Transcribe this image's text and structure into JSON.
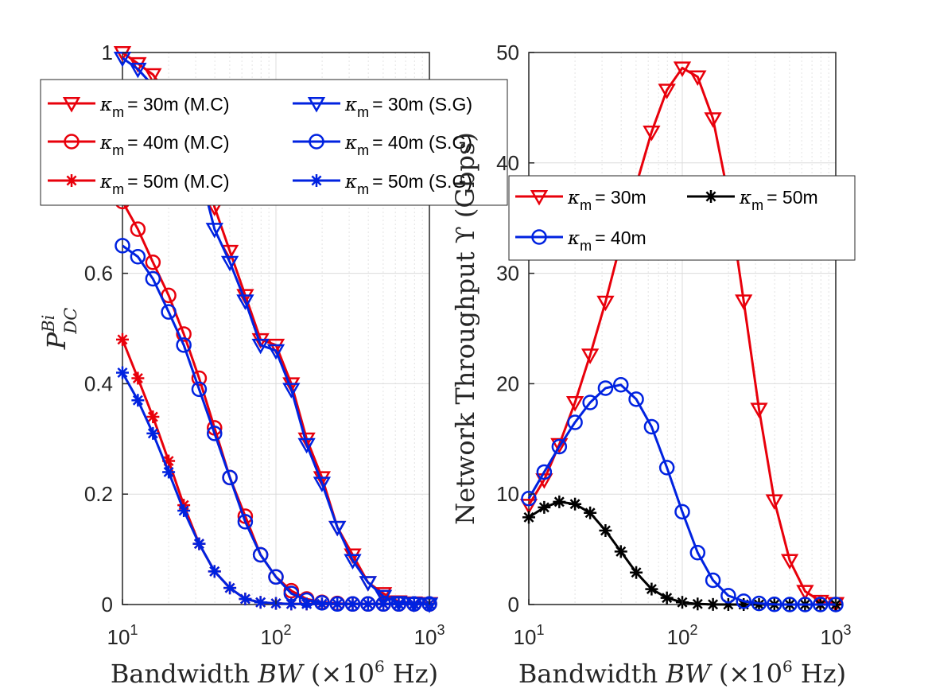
{
  "chart_data": [
    {
      "type": "line",
      "x_scale": "log",
      "xlim": [
        10,
        1000
      ],
      "ylim": [
        0,
        1
      ],
      "xticks": [
        {
          "value": 10,
          "base": "10",
          "exp": "1"
        },
        {
          "value": 100,
          "base": "10",
          "exp": "2"
        },
        {
          "value": 1000,
          "base": "10",
          "exp": "3"
        }
      ],
      "yticks": [
        {
          "value": 0,
          "label": "0"
        },
        {
          "value": 0.2,
          "label": "0.2"
        },
        {
          "value": 0.4,
          "label": "0.4"
        },
        {
          "value": 0.6,
          "label": "0.6"
        },
        {
          "value": 1,
          "label": "1"
        }
      ],
      "xlabel_parts": {
        "text": "Bandwidth ",
        "var": "BW",
        "paren_open": " (×10",
        "exp": "6",
        "paren_close": " Hz)"
      },
      "ylabel_parts": {
        "main": "P",
        "sup": "Bi",
        "sub": "DC"
      },
      "grid": true,
      "legend_placement": "top (overlapping plot, two columns)",
      "legend_prefix": "κ",
      "legend_sub": "m",
      "series": [
        {
          "name": "= 30m (M.C)",
          "color": "#e8000b",
          "marker": "triangle-down",
          "x": [
            10,
            12.6,
            15.8,
            20,
            25.1,
            31.6,
            39.8,
            50.1,
            63.1,
            79.4,
            100,
            125.9,
            158.5,
            199.5,
            251.2,
            316.2,
            398.1,
            501.2,
            631,
            794.3,
            1000
          ],
          "y": [
            1.0,
            0.98,
            0.96,
            0.92,
            0.88,
            0.83,
            0.72,
            0.64,
            0.56,
            0.48,
            0.47,
            0.4,
            0.3,
            0.23,
            0.14,
            0.09,
            0.04,
            0.02,
            0.005,
            0.003,
            0.002
          ]
        },
        {
          "name": "= 40m (M.C)",
          "color": "#e8000b",
          "marker": "circle",
          "x": [
            10,
            12.6,
            15.8,
            20,
            25.1,
            31.6,
            39.8,
            50.1,
            63.1,
            79.4,
            100,
            125.9,
            158.5,
            199.5,
            251.2,
            316.2,
            398.1,
            501.2,
            631,
            794.3,
            1000
          ],
          "y": [
            0.73,
            0.68,
            0.62,
            0.56,
            0.49,
            0.41,
            0.32,
            0.23,
            0.16,
            0.09,
            0.05,
            0.025,
            0.01,
            0.004,
            0.002,
            0.001,
            0.001,
            0.001,
            0.001,
            0.001,
            0.001
          ]
        },
        {
          "name": "= 50m (M.C)",
          "color": "#e8000b",
          "marker": "asterisk",
          "x": [
            10,
            12.6,
            15.8,
            20,
            25.1,
            31.6,
            39.8,
            50.1,
            63.1,
            79.4,
            100,
            125.9,
            158.5,
            199.5,
            251.2,
            316.2,
            398.1,
            501.2,
            631,
            794.3,
            1000
          ],
          "y": [
            0.48,
            0.41,
            0.34,
            0.26,
            0.18,
            0.11,
            0.06,
            0.03,
            0.01,
            0.004,
            0.002,
            0.001,
            0.001,
            0.001,
            0.001,
            0.001,
            0.001,
            0.001,
            0.001,
            0.001,
            0.001
          ]
        },
        {
          "name": "= 30m (S.G)",
          "color": "#0022e0",
          "marker": "triangle-down",
          "x": [
            10,
            12.6,
            15.8,
            20,
            25.1,
            31.6,
            39.8,
            50.1,
            63.1,
            79.4,
            100,
            125.9,
            158.5,
            199.5,
            251.2,
            316.2,
            398.1,
            501.2,
            631,
            794.3,
            1000
          ],
          "y": [
            0.99,
            0.97,
            0.94,
            0.9,
            0.85,
            0.79,
            0.68,
            0.62,
            0.55,
            0.47,
            0.46,
            0.39,
            0.29,
            0.22,
            0.14,
            0.08,
            0.04,
            0.015,
            0.004,
            0.002,
            0.001
          ]
        },
        {
          "name": "= 40m (S.G)",
          "color": "#0022e0",
          "marker": "circle",
          "x": [
            10,
            12.6,
            15.8,
            20,
            25.1,
            31.6,
            39.8,
            50.1,
            63.1,
            79.4,
            100,
            125.9,
            158.5,
            199.5,
            251.2,
            316.2,
            398.1,
            501.2,
            631,
            794.3,
            1000
          ],
          "y": [
            0.65,
            0.63,
            0.59,
            0.53,
            0.47,
            0.39,
            0.31,
            0.23,
            0.15,
            0.09,
            0.05,
            0.02,
            0.008,
            0.003,
            0.001,
            0.001,
            0.001,
            0.001,
            0.001,
            0.001,
            0.001
          ]
        },
        {
          "name": "= 50m (S.G)",
          "color": "#0022e0",
          "marker": "asterisk",
          "x": [
            10,
            12.6,
            15.8,
            20,
            25.1,
            31.6,
            39.8,
            50.1,
            63.1,
            79.4,
            100,
            125.9,
            158.5,
            199.5,
            251.2,
            316.2,
            398.1,
            501.2,
            631,
            794.3,
            1000
          ],
          "y": [
            0.42,
            0.37,
            0.31,
            0.24,
            0.17,
            0.11,
            0.06,
            0.03,
            0.01,
            0.004,
            0.002,
            0.001,
            0.001,
            0.001,
            0.001,
            0.001,
            0.001,
            0.001,
            0.001,
            0.001,
            0.001
          ]
        }
      ]
    },
    {
      "type": "line",
      "x_scale": "log",
      "xlim": [
        10,
        1000
      ],
      "ylim": [
        0,
        50
      ],
      "xticks": [
        {
          "value": 10,
          "base": "10",
          "exp": "1"
        },
        {
          "value": 100,
          "base": "10",
          "exp": "2"
        },
        {
          "value": 1000,
          "base": "10",
          "exp": "3"
        }
      ],
      "yticks": [
        {
          "value": 0,
          "label": "0"
        },
        {
          "value": 10,
          "label": "10"
        },
        {
          "value": 20,
          "label": "20"
        },
        {
          "value": 30,
          "label": "30"
        },
        {
          "value": 40,
          "label": "40"
        },
        {
          "value": 50,
          "label": "50"
        }
      ],
      "xlabel_parts": {
        "text": "Bandwidth ",
        "var": "BW",
        "paren_open": " (×10",
        "exp": "6",
        "paren_close": " Hz)"
      },
      "ylabel": "Network Throughput ϒ (Gbps)",
      "grid": true,
      "legend_placement": "upper-right (overlapping plot)",
      "legend_prefix": "κ",
      "legend_sub": "m",
      "series": [
        {
          "name": "= 30m",
          "color": "#e8000b",
          "marker": "triangle-down",
          "x": [
            10,
            12.6,
            15.8,
            20,
            25.1,
            31.6,
            39.8,
            50.1,
            63.1,
            79.4,
            100,
            125.9,
            158.5,
            199.5,
            251.2,
            316.2,
            398.1,
            501.2,
            631,
            794.3,
            1000
          ],
          "y": [
            9.0,
            11.3,
            14.5,
            18.3,
            22.6,
            27.4,
            32.8,
            38.0,
            42.8,
            46.6,
            48.6,
            47.8,
            44.0,
            37.0,
            27.5,
            17.7,
            9.4,
            4.0,
            1.2,
            0.3,
            0.1
          ]
        },
        {
          "name": "= 50m",
          "color": "#000000",
          "marker": "asterisk",
          "x": [
            10,
            12.6,
            15.8,
            20,
            25.1,
            31.6,
            39.8,
            50.1,
            63.1,
            79.4,
            100,
            125.9,
            158.5,
            199.5,
            251.2,
            316.2,
            398.1,
            501.2,
            631,
            794.3,
            1000
          ],
          "y": [
            7.9,
            8.8,
            9.3,
            9.1,
            8.3,
            6.7,
            4.8,
            2.9,
            1.4,
            0.6,
            0.2,
            0.05,
            0.01,
            0,
            0,
            0,
            0,
            0,
            0,
            0,
            0
          ]
        },
        {
          "name": "= 40m",
          "color": "#0022e0",
          "marker": "circle",
          "x": [
            10,
            12.6,
            15.8,
            20,
            25.1,
            31.6,
            39.8,
            50.1,
            63.1,
            79.4,
            100,
            125.9,
            158.5,
            199.5,
            251.2,
            316.2,
            398.1,
            501.2,
            631,
            794.3,
            1000
          ],
          "y": [
            9.6,
            12.0,
            14.3,
            16.5,
            18.3,
            19.6,
            19.9,
            18.6,
            16.1,
            12.4,
            8.4,
            4.7,
            2.2,
            0.8,
            0.3,
            0.1,
            0.02,
            0,
            0,
            0,
            0
          ]
        }
      ]
    }
  ]
}
